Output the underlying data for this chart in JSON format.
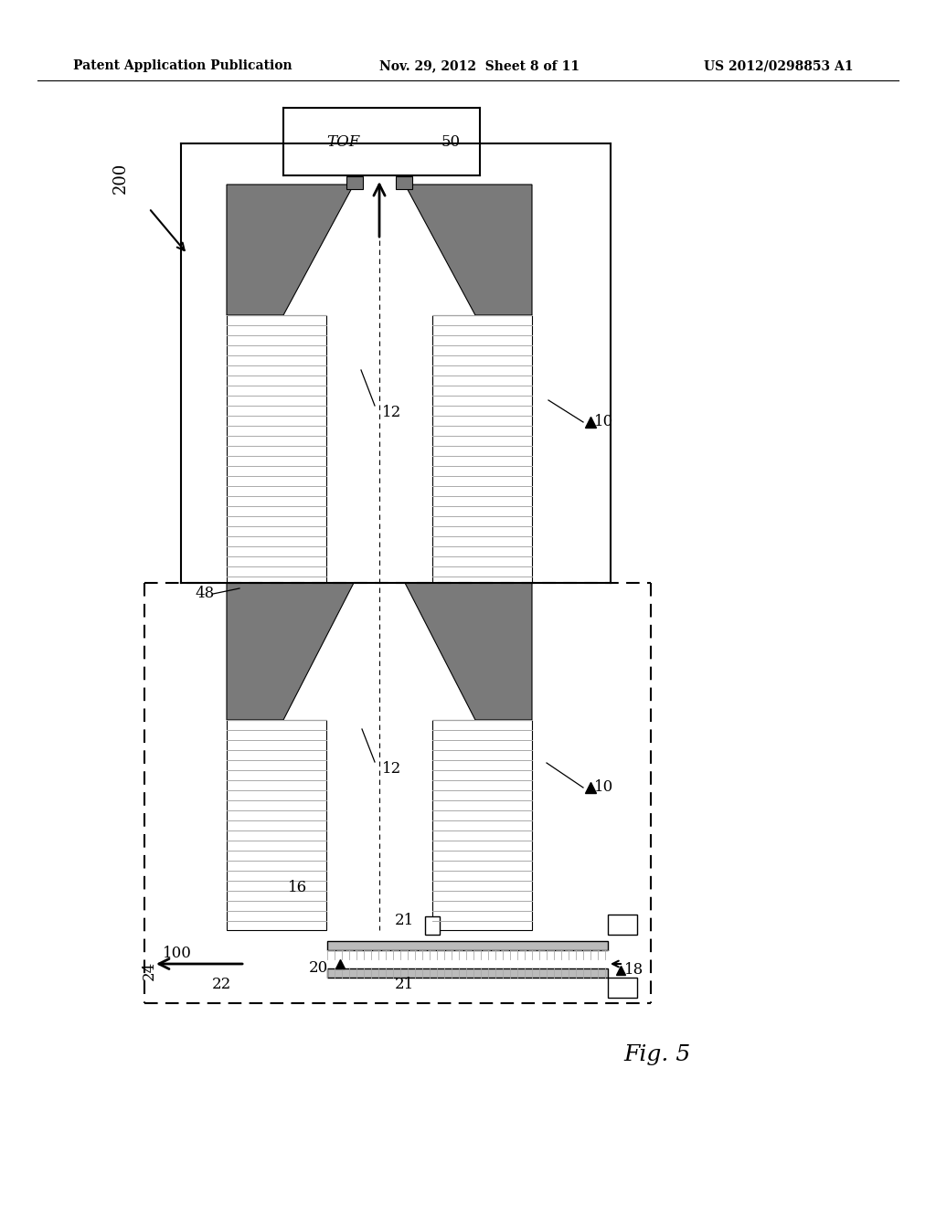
{
  "bg_color": "#ffffff",
  "title_left": "Patent Application Publication",
  "title_mid": "Nov. 29, 2012  Sheet 8 of 11",
  "title_right": "US 2012/0298853 A1",
  "fig_label": "Fig. 5",
  "gray_dark": "#7a7a7a",
  "gray_light": "#bbbbbb",
  "gray_medium": "#aaaaaa",
  "line_color": "#000000"
}
